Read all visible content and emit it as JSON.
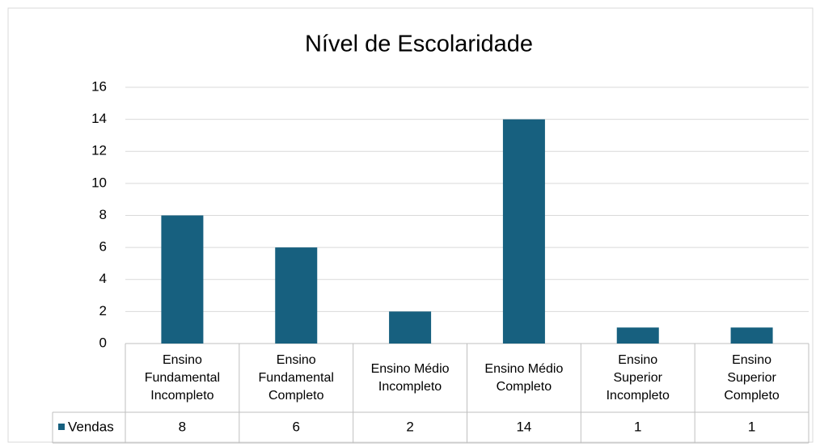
{
  "chart_data": {
    "type": "bar",
    "title": "Nível de Escolaridade",
    "categories": [
      "Ensino Fundamental Incompleto",
      "Ensino Fundamental Completo",
      "Ensino Médio Incompleto",
      "Ensino Médio Completo",
      "Ensino Superior Incompleto",
      "Ensino Superior Completo"
    ],
    "series": [
      {
        "name": "Vendas",
        "color": "#17607f",
        "values": [
          8,
          6,
          2,
          14,
          1,
          1
        ]
      }
    ],
    "ylim": [
      0,
      16
    ],
    "yticks": [
      0,
      2,
      4,
      6,
      8,
      10,
      12,
      14,
      16
    ],
    "grid": true
  }
}
